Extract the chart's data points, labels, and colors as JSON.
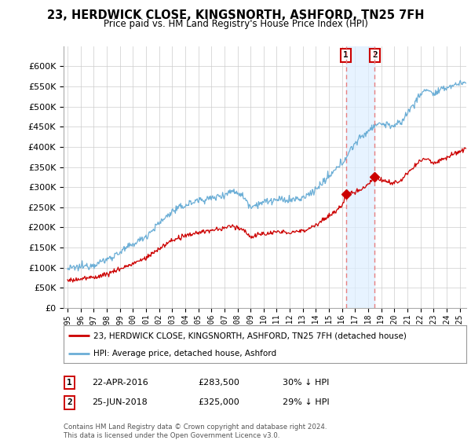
{
  "title": "23, HERDWICK CLOSE, KINGSNORTH, ASHFORD, TN25 7FH",
  "subtitle": "Price paid vs. HM Land Registry's House Price Index (HPI)",
  "ylim": [
    0,
    650000
  ],
  "yticks": [
    0,
    50000,
    100000,
    150000,
    200000,
    250000,
    300000,
    350000,
    400000,
    450000,
    500000,
    550000,
    600000
  ],
  "xlim_start": 1994.7,
  "xlim_end": 2025.5,
  "hpi_color": "#6baed6",
  "price_color": "#cc0000",
  "marker_color": "#cc0000",
  "dashed_color": "#e88080",
  "shade_color": "#ddeeff",
  "legend_label_price": "23, HERDWICK CLOSE, KINGSNORTH, ASHFORD, TN25 7FH (detached house)",
  "legend_label_hpi": "HPI: Average price, detached house, Ashford",
  "sale1_label": "1",
  "sale1_date": "22-APR-2016",
  "sale1_price": "£283,500",
  "sale1_hpi": "30% ↓ HPI",
  "sale1_year": 2016.3,
  "sale1_value": 283500,
  "sale2_label": "2",
  "sale2_date": "25-JUN-2018",
  "sale2_price": "£325,000",
  "sale2_hpi": "29% ↓ HPI",
  "sale2_year": 2018.5,
  "sale2_value": 325000,
  "footer": "Contains HM Land Registry data © Crown copyright and database right 2024.\nThis data is licensed under the Open Government Licence v3.0.",
  "background_color": "#ffffff",
  "grid_color": "#cccccc"
}
